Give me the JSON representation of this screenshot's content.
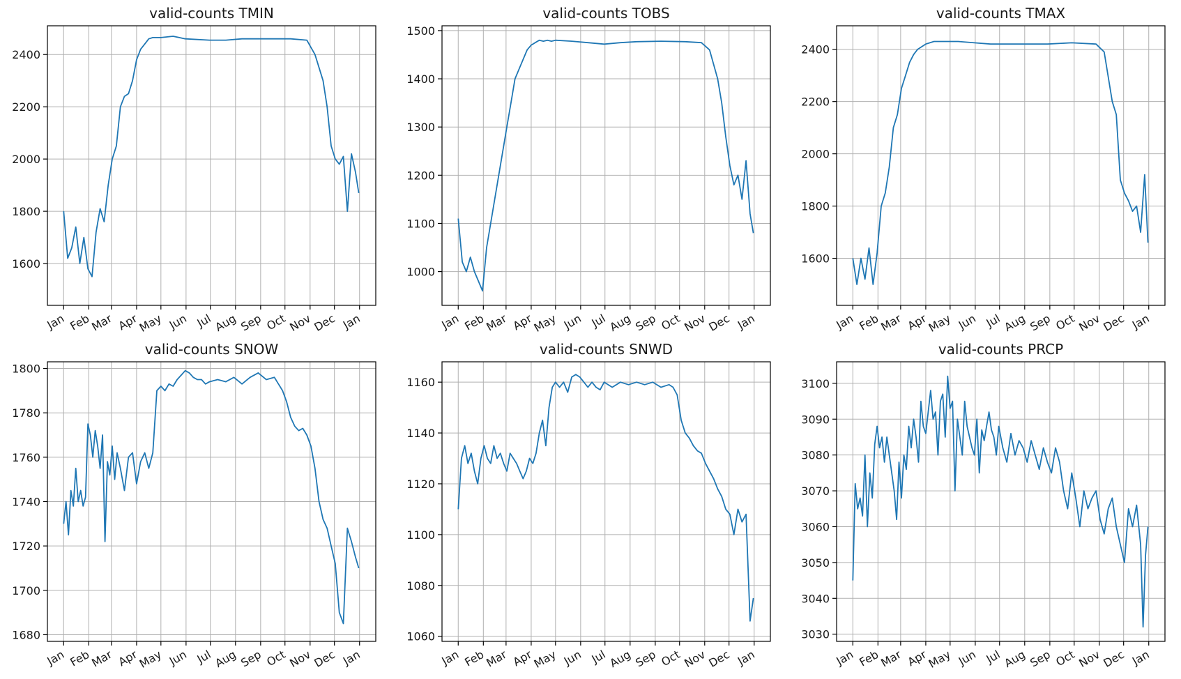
{
  "chart_data": [
    {
      "type": "line",
      "title": "valid-counts TMIN",
      "ylim": [
        1440,
        2510
      ],
      "yticks": [
        1600,
        1800,
        2000,
        2200,
        2400
      ],
      "xlim": [
        -20,
        385
      ],
      "months": [
        "Jan",
        "Feb",
        "Mar",
        "Apr",
        "May",
        "Jun",
        "Jul",
        "Aug",
        "Sep",
        "Oct",
        "Nov",
        "Dec",
        "Jan"
      ],
      "grid": true,
      "series": [
        {
          "color": "#1f77b4",
          "x": [
            0,
            5,
            10,
            15,
            20,
            25,
            30,
            35,
            40,
            45,
            50,
            55,
            60,
            65,
            70,
            75,
            80,
            85,
            90,
            95,
            100,
            105,
            110,
            115,
            120,
            135,
            150,
            180,
            200,
            220,
            250,
            280,
            300,
            310,
            320,
            325,
            330,
            335,
            340,
            345,
            350,
            355,
            360,
            364
          ],
          "y": [
            1800,
            1620,
            1660,
            1740,
            1600,
            1700,
            1580,
            1550,
            1720,
            1810,
            1760,
            1900,
            2000,
            2050,
            2200,
            2240,
            2250,
            2300,
            2380,
            2420,
            2440,
            2460,
            2465,
            2465,
            2465,
            2470,
            2460,
            2455,
            2455,
            2460,
            2460,
            2460,
            2455,
            2400,
            2300,
            2200,
            2050,
            2000,
            1980,
            2010,
            1800,
            2020,
            1950,
            1870
          ]
        }
      ]
    },
    {
      "type": "line",
      "title": "valid-counts TOBS",
      "ylim": [
        930,
        1510
      ],
      "yticks": [
        1000,
        1100,
        1200,
        1300,
        1400,
        1500
      ],
      "xlim": [
        -20,
        385
      ],
      "months": [
        "Jan",
        "Feb",
        "Mar",
        "Apr",
        "May",
        "Jun",
        "Jul",
        "Aug",
        "Sep",
        "Oct",
        "Nov",
        "Dec",
        "Jan"
      ],
      "grid": true,
      "series": [
        {
          "color": "#1f77b4",
          "x": [
            0,
            5,
            10,
            15,
            20,
            25,
            30,
            35,
            40,
            45,
            50,
            55,
            60,
            65,
            70,
            75,
            80,
            85,
            90,
            95,
            100,
            105,
            110,
            115,
            120,
            140,
            160,
            180,
            200,
            220,
            250,
            280,
            300,
            310,
            320,
            325,
            330,
            335,
            340,
            345,
            350,
            355,
            360,
            364
          ],
          "y": [
            1110,
            1020,
            1000,
            1030,
            1000,
            980,
            960,
            1050,
            1100,
            1150,
            1200,
            1250,
            1300,
            1350,
            1400,
            1420,
            1440,
            1460,
            1470,
            1475,
            1480,
            1478,
            1480,
            1478,
            1480,
            1478,
            1475,
            1472,
            1475,
            1477,
            1478,
            1477,
            1475,
            1460,
            1400,
            1350,
            1280,
            1220,
            1180,
            1200,
            1150,
            1230,
            1120,
            1080
          ]
        }
      ]
    },
    {
      "type": "line",
      "title": "valid-counts TMAX",
      "ylim": [
        1420,
        2490
      ],
      "yticks": [
        1600,
        1800,
        2000,
        2200,
        2400
      ],
      "xlim": [
        -20,
        385
      ],
      "months": [
        "Jan",
        "Feb",
        "Mar",
        "Apr",
        "May",
        "Jun",
        "Jul",
        "Aug",
        "Sep",
        "Oct",
        "Nov",
        "Dec",
        "Jan"
      ],
      "grid": true,
      "series": [
        {
          "color": "#1f77b4",
          "x": [
            0,
            5,
            10,
            15,
            20,
            25,
            30,
            35,
            40,
            45,
            50,
            55,
            60,
            65,
            70,
            75,
            80,
            85,
            90,
            95,
            100,
            110,
            130,
            150,
            170,
            190,
            210,
            240,
            270,
            300,
            310,
            320,
            325,
            330,
            335,
            340,
            345,
            350,
            355,
            360,
            364
          ],
          "y": [
            1600,
            1500,
            1600,
            1520,
            1640,
            1500,
            1620,
            1800,
            1850,
            1950,
            2100,
            2150,
            2250,
            2300,
            2350,
            2380,
            2400,
            2410,
            2420,
            2425,
            2430,
            2430,
            2430,
            2425,
            2420,
            2420,
            2420,
            2420,
            2425,
            2420,
            2390,
            2200,
            2150,
            1900,
            1850,
            1820,
            1780,
            1800,
            1700,
            1920,
            1660
          ]
        }
      ]
    },
    {
      "type": "line",
      "title": "valid-counts SNOW",
      "ylim": [
        1677,
        1803
      ],
      "yticks": [
        1680,
        1700,
        1720,
        1740,
        1760,
        1780,
        1800
      ],
      "xlim": [
        -20,
        385
      ],
      "months": [
        "Jan",
        "Feb",
        "Mar",
        "Apr",
        "May",
        "Jun",
        "Jul",
        "Aug",
        "Sep",
        "Oct",
        "Nov",
        "Dec",
        "Jan"
      ],
      "grid": true,
      "series": [
        {
          "color": "#1f77b4",
          "x": [
            0,
            3,
            6,
            9,
            12,
            15,
            18,
            21,
            24,
            27,
            30,
            33,
            36,
            39,
            42,
            45,
            48,
            51,
            54,
            57,
            60,
            63,
            66,
            70,
            75,
            80,
            85,
            90,
            95,
            100,
            105,
            110,
            115,
            120,
            125,
            130,
            135,
            140,
            145,
            150,
            155,
            160,
            165,
            170,
            175,
            180,
            190,
            200,
            210,
            220,
            230,
            240,
            250,
            260,
            265,
            270,
            275,
            280,
            285,
            290,
            295,
            300,
            305,
            310,
            315,
            320,
            325,
            330,
            335,
            340,
            345,
            350,
            355,
            360,
            364
          ],
          "y": [
            1730,
            1740,
            1725,
            1745,
            1738,
            1755,
            1740,
            1745,
            1738,
            1742,
            1775,
            1770,
            1760,
            1772,
            1765,
            1755,
            1770,
            1722,
            1758,
            1752,
            1765,
            1750,
            1762,
            1755,
            1745,
            1760,
            1762,
            1748,
            1758,
            1762,
            1755,
            1762,
            1790,
            1792,
            1790,
            1793,
            1792,
            1795,
            1797,
            1799,
            1798,
            1796,
            1795,
            1795,
            1793,
            1794,
            1795,
            1794,
            1796,
            1793,
            1796,
            1798,
            1795,
            1796,
            1793,
            1790,
            1785,
            1778,
            1774,
            1772,
            1773,
            1770,
            1765,
            1755,
            1740,
            1732,
            1728,
            1720,
            1712,
            1690,
            1685,
            1728,
            1722,
            1715,
            1710
          ]
        }
      ]
    },
    {
      "type": "line",
      "title": "valid-counts SNWD",
      "ylim": [
        1058,
        1168
      ],
      "yticks": [
        1060,
        1080,
        1100,
        1120,
        1140,
        1160
      ],
      "xlim": [
        -20,
        385
      ],
      "months": [
        "Jan",
        "Feb",
        "Mar",
        "Apr",
        "May",
        "Jun",
        "Jul",
        "Aug",
        "Sep",
        "Oct",
        "Nov",
        "Dec",
        "Jan"
      ],
      "grid": true,
      "series": [
        {
          "color": "#1f77b4",
          "x": [
            0,
            4,
            8,
            12,
            16,
            20,
            24,
            28,
            32,
            36,
            40,
            44,
            48,
            52,
            56,
            60,
            64,
            68,
            72,
            76,
            80,
            84,
            88,
            92,
            96,
            100,
            104,
            108,
            112,
            116,
            120,
            125,
            130,
            135,
            140,
            145,
            150,
            155,
            160,
            165,
            170,
            175,
            180,
            190,
            200,
            210,
            220,
            230,
            240,
            250,
            260,
            265,
            270,
            275,
            280,
            285,
            290,
            295,
            300,
            305,
            310,
            315,
            320,
            325,
            330,
            335,
            340,
            345,
            350,
            355,
            360,
            364
          ],
          "y": [
            1110,
            1130,
            1135,
            1128,
            1132,
            1125,
            1120,
            1130,
            1135,
            1130,
            1128,
            1135,
            1130,
            1132,
            1128,
            1125,
            1132,
            1130,
            1128,
            1125,
            1122,
            1125,
            1130,
            1128,
            1132,
            1140,
            1145,
            1135,
            1150,
            1158,
            1160,
            1158,
            1160,
            1156,
            1162,
            1163,
            1162,
            1160,
            1158,
            1160,
            1158,
            1157,
            1160,
            1158,
            1160,
            1159,
            1160,
            1159,
            1160,
            1158,
            1159,
            1158,
            1155,
            1145,
            1140,
            1138,
            1135,
            1133,
            1132,
            1128,
            1125,
            1122,
            1118,
            1115,
            1110,
            1108,
            1100,
            1110,
            1105,
            1108,
            1066,
            1075
          ]
        }
      ]
    },
    {
      "type": "line",
      "title": "valid-counts PRCP",
      "ylim": [
        3028,
        3106
      ],
      "yticks": [
        3030,
        3040,
        3050,
        3060,
        3070,
        3080,
        3090,
        3100
      ],
      "xlim": [
        -20,
        385
      ],
      "months": [
        "Jan",
        "Feb",
        "Mar",
        "Apr",
        "May",
        "Jun",
        "Jul",
        "Aug",
        "Sep",
        "Oct",
        "Nov",
        "Dec",
        "Jan"
      ],
      "grid": true,
      "series": [
        {
          "color": "#1f77b4",
          "x": [
            0,
            3,
            6,
            9,
            12,
            15,
            18,
            21,
            24,
            27,
            30,
            33,
            36,
            39,
            42,
            45,
            48,
            51,
            54,
            57,
            60,
            63,
            66,
            69,
            72,
            75,
            78,
            81,
            84,
            87,
            90,
            93,
            96,
            99,
            102,
            105,
            108,
            111,
            114,
            117,
            120,
            123,
            126,
            129,
            132,
            135,
            138,
            141,
            144,
            147,
            150,
            153,
            156,
            159,
            162,
            165,
            168,
            171,
            174,
            177,
            180,
            185,
            190,
            195,
            200,
            205,
            210,
            215,
            220,
            225,
            230,
            235,
            240,
            245,
            250,
            255,
            260,
            265,
            270,
            275,
            280,
            285,
            290,
            295,
            300,
            305,
            310,
            315,
            320,
            325,
            330,
            335,
            340,
            345,
            350,
            355,
            358,
            361,
            364
          ],
          "y": [
            3045,
            3072,
            3065,
            3068,
            3063,
            3080,
            3060,
            3075,
            3068,
            3083,
            3088,
            3082,
            3085,
            3078,
            3085,
            3080,
            3075,
            3070,
            3062,
            3078,
            3068,
            3080,
            3076,
            3088,
            3082,
            3090,
            3085,
            3078,
            3095,
            3088,
            3086,
            3092,
            3098,
            3090,
            3092,
            3080,
            3095,
            3097,
            3085,
            3102,
            3093,
            3095,
            3070,
            3090,
            3085,
            3080,
            3095,
            3088,
            3085,
            3082,
            3080,
            3090,
            3075,
            3087,
            3084,
            3088,
            3092,
            3087,
            3085,
            3080,
            3088,
            3082,
            3078,
            3086,
            3080,
            3084,
            3082,
            3078,
            3084,
            3080,
            3076,
            3082,
            3078,
            3075,
            3082,
            3078,
            3070,
            3065,
            3075,
            3068,
            3060,
            3070,
            3065,
            3068,
            3070,
            3062,
            3058,
            3065,
            3068,
            3060,
            3055,
            3050,
            3065,
            3060,
            3066,
            3055,
            3032,
            3052,
            3060
          ]
        }
      ]
    }
  ]
}
